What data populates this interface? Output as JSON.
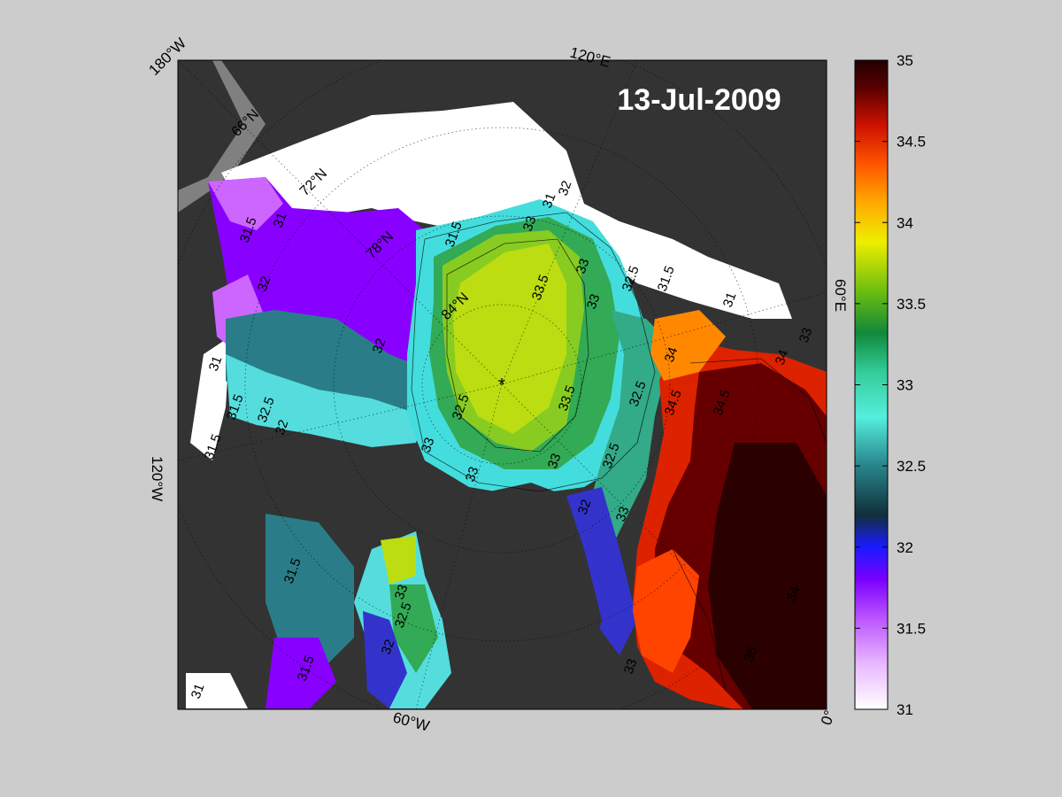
{
  "map": {
    "date_label": "13-Jul-2009",
    "longitude_labels": {
      "w180": "180°W",
      "e120": "120°E",
      "e60": "60°E",
      "w120": "120°W",
      "w60": "60°W",
      "zero": "0°"
    },
    "latitude_labels": [
      "66°N",
      "72°N",
      "78°N",
      "84°N"
    ],
    "contour_labels": [
      "31",
      "31.5",
      "32",
      "32.5",
      "33",
      "33.5",
      "34",
      "34.5",
      "35"
    ],
    "pole_marker": "*"
  },
  "colorbar": {
    "min": 31,
    "max": 35,
    "ticks": [
      "35",
      "34.5",
      "34",
      "33.5",
      "33",
      "32.5",
      "32",
      "31.5",
      "31"
    ],
    "stops": [
      "#ffffff",
      "#cc66ff",
      "#8800ff",
      "#1a1aff",
      "#1a3a4a",
      "#3aa0a0",
      "#55eedd",
      "#22aa66",
      "#55bb22",
      "#ccdd11",
      "#ffee00",
      "#ff8800",
      "#dd2200",
      "#660000",
      "#220000"
    ]
  },
  "colors": {
    "land": "#333333",
    "ice": "#ffffff",
    "background": "#cccccc",
    "no_data": "#808080"
  }
}
